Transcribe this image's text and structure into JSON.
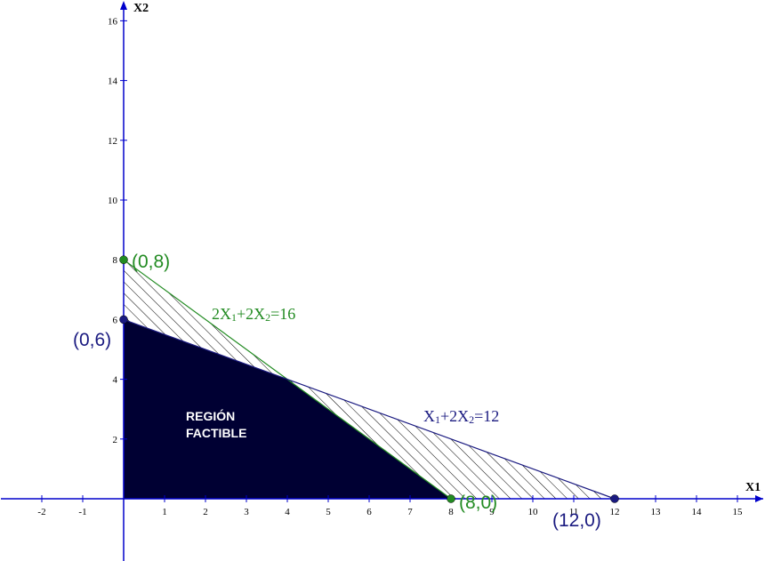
{
  "chart_data": {
    "type": "line",
    "xlabel": "X1",
    "ylabel": "X2",
    "xlim": [
      -3,
      15.5
    ],
    "ylim": [
      -2.1,
      16.6
    ],
    "x_ticks": [
      -2,
      -1,
      1,
      2,
      3,
      4,
      5,
      6,
      7,
      8,
      9,
      10,
      11,
      12,
      13,
      14,
      15
    ],
    "y_ticks": [
      2,
      4,
      6,
      8,
      10,
      12,
      14,
      16
    ],
    "constraints": [
      {
        "equation_parts": [
          "2X",
          "1",
          "+2X",
          "2",
          "=16"
        ],
        "color": "#228B22",
        "points": [
          [
            0,
            8
          ],
          [
            8,
            0
          ]
        ]
      },
      {
        "equation_parts": [
          "X",
          "1",
          "+2X",
          "2",
          "=12"
        ],
        "color": "#1a1a80",
        "points": [
          [
            0,
            6
          ],
          [
            12,
            0
          ]
        ]
      }
    ],
    "feasible_region": {
      "label_line1": "REGIÓN",
      "label_line2": "FACTIBLE",
      "vertices": [
        [
          0,
          0
        ],
        [
          0,
          6
        ],
        [
          4,
          4
        ],
        [
          8,
          0
        ]
      ],
      "fill": "#000033"
    },
    "hatched_regions": [
      [
        [
          0,
          6
        ],
        [
          0,
          8
        ],
        [
          4,
          4
        ]
      ],
      [
        [
          4,
          4
        ],
        [
          12,
          0
        ],
        [
          8,
          0
        ]
      ]
    ],
    "points": [
      {
        "label": "(0,8)",
        "x": 0,
        "y": 8,
        "color": "#228B22"
      },
      {
        "label": "(0,6)",
        "x": 0,
        "y": 6,
        "color": "#1a1a80"
      },
      {
        "label": "(8,0)",
        "x": 8,
        "y": 0,
        "color": "#228B22"
      },
      {
        "label": "(12,0)",
        "x": 12,
        "y": 0,
        "color": "#1a1a80"
      }
    ],
    "axis_color": "#0000cc"
  }
}
